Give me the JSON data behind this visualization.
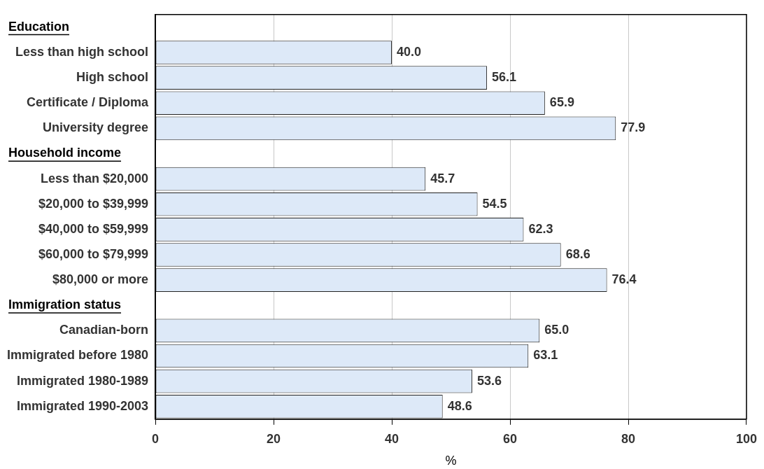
{
  "chart_data": {
    "type": "bar",
    "orientation": "horizontal",
    "xlabel": "%",
    "categories": [
      null,
      "Less than high school",
      "High school",
      "Certificate / Diploma",
      "University degree",
      null,
      "Less than $20,000",
      "$20,000 to $39,999",
      "$40,000 to $59,999",
      "$60,000 to $79,999",
      "$80,000 or more",
      null,
      "Canadian-born",
      "Immigrated before 1980",
      "Immigrated 1980-1989",
      "Immigrated 1990-2003"
    ],
    "values": [
      null,
      40.0,
      56.1,
      65.9,
      77.9,
      null,
      45.7,
      54.5,
      62.3,
      68.6,
      76.4,
      null,
      65.0,
      63.1,
      53.6,
      48.6
    ],
    "value_labels": [
      null,
      "40.0",
      "56.1",
      "65.9",
      "77.9",
      null,
      "45.7",
      "54.5",
      "62.3",
      "68.6",
      "76.4",
      null,
      "65.0",
      "63.1",
      "53.6",
      "48.6"
    ],
    "annotations": [
      "Education",
      "Household income",
      "Immigration status"
    ],
    "color": "#dde9f8",
    "xlim": [
      0,
      100
    ],
    "xticks": [
      0,
      20,
      40,
      60,
      80,
      100
    ],
    "grid": "x",
    "legend": false
  }
}
